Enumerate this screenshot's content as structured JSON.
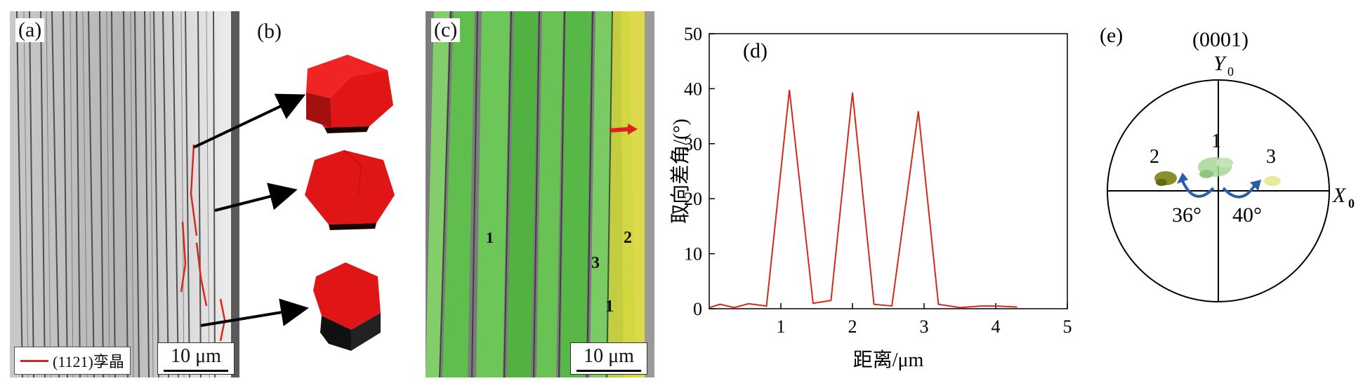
{
  "panels": {
    "a": {
      "label": "(a)",
      "scale_bar": "10 μm",
      "legend_text": "(11–2–1)孪晶",
      "legend_color": "#d42a1d"
    },
    "b": {
      "label": "(b)",
      "crystal_color": "#e01616"
    },
    "c": {
      "label": "(c)",
      "scale_bar": "10 μm",
      "grain_labels": [
        "1",
        "2",
        "3"
      ],
      "arrow_color": "#e0201a"
    },
    "e": {
      "label": "(e)",
      "title": "(0001)",
      "y_axis": "Y",
      "y_sub": "0",
      "x_axis": "X",
      "x_sub": "0",
      "point_labels": [
        "1",
        "2",
        "3"
      ],
      "angles": [
        "36°",
        "40°"
      ],
      "arrow_color": "#2a5fa8"
    }
  },
  "chart_data": {
    "type": "line",
    "panel_label": "(d)",
    "title": "",
    "xlabel": "距离/μm",
    "ylabel": "取向差角/(°)",
    "xlim": [
      0,
      5
    ],
    "ylim": [
      0,
      50
    ],
    "xticks": [
      "1",
      "2",
      "3",
      "4",
      "5"
    ],
    "yticks": [
      "0",
      "10",
      "20",
      "30",
      "40",
      "50"
    ],
    "line_color": "#d42a1d",
    "series": [
      {
        "name": "misorientation",
        "x": [
          0.0,
          0.15,
          0.35,
          0.55,
          0.8,
          1.12,
          1.45,
          1.7,
          2.0,
          2.3,
          2.55,
          2.92,
          3.2,
          3.5,
          3.8,
          4.0,
          4.3
        ],
        "y": [
          0.2,
          0.8,
          0.2,
          0.9,
          0.5,
          39.8,
          1.0,
          1.5,
          39.3,
          0.8,
          0.5,
          35.9,
          0.8,
          0.2,
          0.5,
          0.5,
          0.3
        ]
      }
    ]
  }
}
